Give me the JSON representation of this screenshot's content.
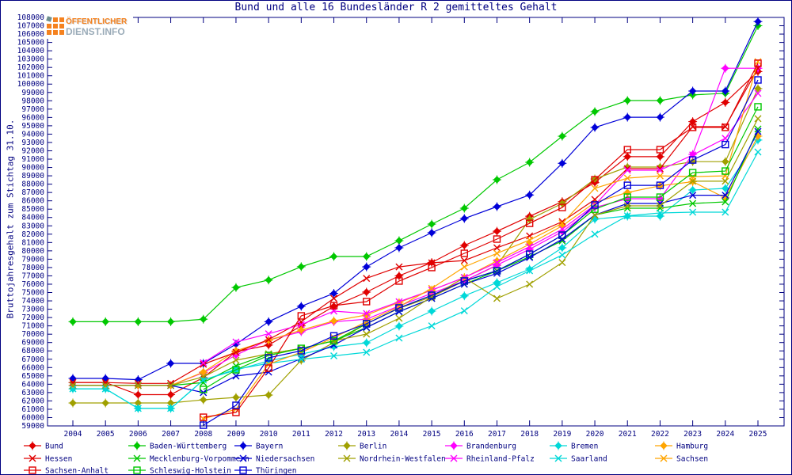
{
  "logo": {
    "line1": "ÖFFENTLICHER",
    "line2": "DIENST.INFO"
  },
  "axis_color": "#000080",
  "chart_data": {
    "type": "line",
    "title": "Bund und alle 16 Bundesländer R 2 gemitteltes Gehalt",
    "ylabel": "Bruttojahresgehalt zum Stichtag 31.10.",
    "xlabel": "",
    "grid": false,
    "legend_position": "bottom",
    "ylim": [
      59000,
      108000
    ],
    "ytick_step": 1000,
    "x": [
      2004,
      2005,
      2006,
      2007,
      2008,
      2009,
      2010,
      2011,
      2012,
      2013,
      2014,
      2015,
      2016,
      2017,
      2018,
      2019,
      2020,
      2021,
      2022,
      2023,
      2024,
      2025
    ],
    "series": [
      {
        "name": "Bund",
        "color": "#e00000",
        "marker": "diamond",
        "values": [
          64200,
          64200,
          62750,
          62750,
          64800,
          67900,
          68700,
          71000,
          73350,
          75050,
          77000,
          78600,
          80650,
          82350,
          84150,
          85900,
          88200,
          91300,
          91300,
          95500,
          97800,
          101500
        ]
      },
      {
        "name": "Baden-Württemberg",
        "color": "#00c800",
        "marker": "diamond",
        "values": [
          71500,
          71500,
          71500,
          71500,
          71800,
          75600,
          76500,
          78100,
          79320,
          79320,
          81220,
          83210,
          85110,
          88530,
          90620,
          93750,
          96700,
          98030,
          98030,
          98700,
          98900,
          107000
        ]
      },
      {
        "name": "Bayern",
        "color": "#0000d8",
        "marker": "diamond",
        "values": [
          64700,
          64700,
          64550,
          66500,
          66500,
          68800,
          71500,
          73350,
          74900,
          78080,
          80370,
          82170,
          83880,
          85300,
          86700,
          90500,
          94800,
          96030,
          96030,
          99170,
          99170,
          107500
        ]
      },
      {
        "name": "Berlin",
        "color": "#a0a000",
        "marker": "diamond",
        "values": [
          61750,
          61750,
          61750,
          61750,
          62130,
          62420,
          62700,
          66880,
          69000,
          71250,
          73100,
          74500,
          76400,
          78270,
          83780,
          85680,
          88620,
          90050,
          90050,
          90700,
          90700,
          99460
        ]
      },
      {
        "name": "Brandenburg",
        "color": "#ff00ff",
        "marker": "diamond",
        "values": [
          63850,
          63850,
          63850,
          63850,
          65400,
          67500,
          69300,
          70300,
          71500,
          71800,
          73400,
          74900,
          76400,
          78300,
          80200,
          82300,
          85200,
          86250,
          86250,
          91570,
          101900,
          101900
        ]
      },
      {
        "name": "Bremen",
        "color": "#00d8d8",
        "marker": "diamond",
        "values": [
          63450,
          63450,
          61100,
          61100,
          64500,
          65700,
          66800,
          67600,
          68500,
          68970,
          70970,
          72770,
          74600,
          76190,
          77800,
          80370,
          83800,
          84160,
          84160,
          87300,
          87490,
          93290
        ]
      },
      {
        "name": "Hamburg",
        "color": "#ffa500",
        "marker": "diamond",
        "values": [
          63850,
          63850,
          63850,
          63850,
          65460,
          68020,
          69260,
          70500,
          71600,
          72300,
          73800,
          75300,
          76800,
          78800,
          80800,
          83000,
          85800,
          87000,
          87800,
          88300,
          86350,
          93760
        ]
      },
      {
        "name": "Hessen",
        "color": "#e00000",
        "marker": "x",
        "values": [
          64200,
          64200,
          64100,
          64100,
          66400,
          67830,
          69350,
          71500,
          74300,
          76700,
          78080,
          78560,
          78840,
          80370,
          81790,
          83500,
          86160,
          89860,
          89860,
          94900,
          94900,
          101900
        ]
      },
      {
        "name": "Mecklenburg-Vorpommern",
        "color": "#00c800",
        "marker": "x",
        "values": [
          63850,
          63850,
          63850,
          63850,
          64200,
          66210,
          67640,
          68300,
          69200,
          70800,
          72700,
          74300,
          76000,
          77600,
          79300,
          81200,
          84300,
          85110,
          85110,
          85680,
          85870,
          94610
        ]
      },
      {
        "name": "Niedersachsen",
        "color": "#0000d8",
        "marker": "x",
        "values": [
          63850,
          63850,
          63850,
          63850,
          63000,
          64980,
          65460,
          67070,
          68700,
          70800,
          72700,
          74300,
          76000,
          77300,
          79200,
          81400,
          84300,
          85680,
          85680,
          86670,
          86670,
          94330
        ]
      },
      {
        "name": "Nordrhein-Westfalen",
        "color": "#a0a000",
        "marker": "x",
        "values": [
          63850,
          63850,
          63850,
          63850,
          64890,
          66880,
          67640,
          68300,
          69200,
          70020,
          71910,
          74500,
          76800,
          74290,
          76000,
          78600,
          84300,
          85400,
          85400,
          88350,
          88350,
          95860
        ]
      },
      {
        "name": "Rheinland-Pfalz",
        "color": "#ff00ff",
        "marker": "x",
        "values": [
          null,
          null,
          null,
          null,
          66570,
          69070,
          70050,
          71150,
          72770,
          72480,
          73900,
          75300,
          76800,
          78600,
          80500,
          82600,
          85500,
          89670,
          89670,
          91500,
          93500,
          98890
        ]
      },
      {
        "name": "Saarland",
        "color": "#00d8d8",
        "marker": "x",
        "values": [
          63450,
          63450,
          61100,
          61100,
          64510,
          65800,
          66500,
          67000,
          67400,
          67830,
          69540,
          71000,
          72800,
          75710,
          77610,
          79500,
          82000,
          84200,
          84540,
          84640,
          84640,
          91860
        ]
      },
      {
        "name": "Sachsen",
        "color": "#ffa500",
        "marker": "x",
        "values": [
          null,
          null,
          null,
          null,
          59850,
          61000,
          66400,
          67830,
          69600,
          71500,
          73300,
          75500,
          78080,
          79700,
          81300,
          83300,
          87500,
          88720,
          89000,
          88900,
          89000,
          102700
        ]
      },
      {
        "name": "Sachsen-Anhalt",
        "color": "#e00000",
        "marker": "square",
        "values": [
          null,
          null,
          null,
          null,
          60040,
          60620,
          65930,
          72200,
          73430,
          73910,
          76380,
          78000,
          79700,
          81410,
          83300,
          85200,
          88530,
          92140,
          92140,
          94810,
          94810,
          102500
        ]
      },
      {
        "name": "Schleswig-Holstein",
        "color": "#00c800",
        "marker": "square",
        "values": [
          null,
          null,
          null,
          null,
          63370,
          65740,
          67450,
          68300,
          69200,
          71250,
          73150,
          74670,
          76380,
          77610,
          79600,
          81880,
          85000,
          86440,
          86440,
          89380,
          89570,
          97280
        ]
      },
      {
        "name": "Thüringen",
        "color": "#0000d8",
        "marker": "square",
        "values": [
          null,
          null,
          null,
          null,
          59090,
          61470,
          67170,
          68020,
          69800,
          71250,
          73150,
          74670,
          76380,
          77610,
          79600,
          81880,
          85500,
          87860,
          87860,
          90900,
          92750,
          100500
        ]
      }
    ],
    "legend_rows": [
      [
        0,
        1,
        2,
        3,
        4,
        5,
        6
      ],
      [
        7,
        8,
        9,
        10,
        11,
        12,
        13
      ],
      [
        14,
        15,
        16
      ]
    ]
  }
}
